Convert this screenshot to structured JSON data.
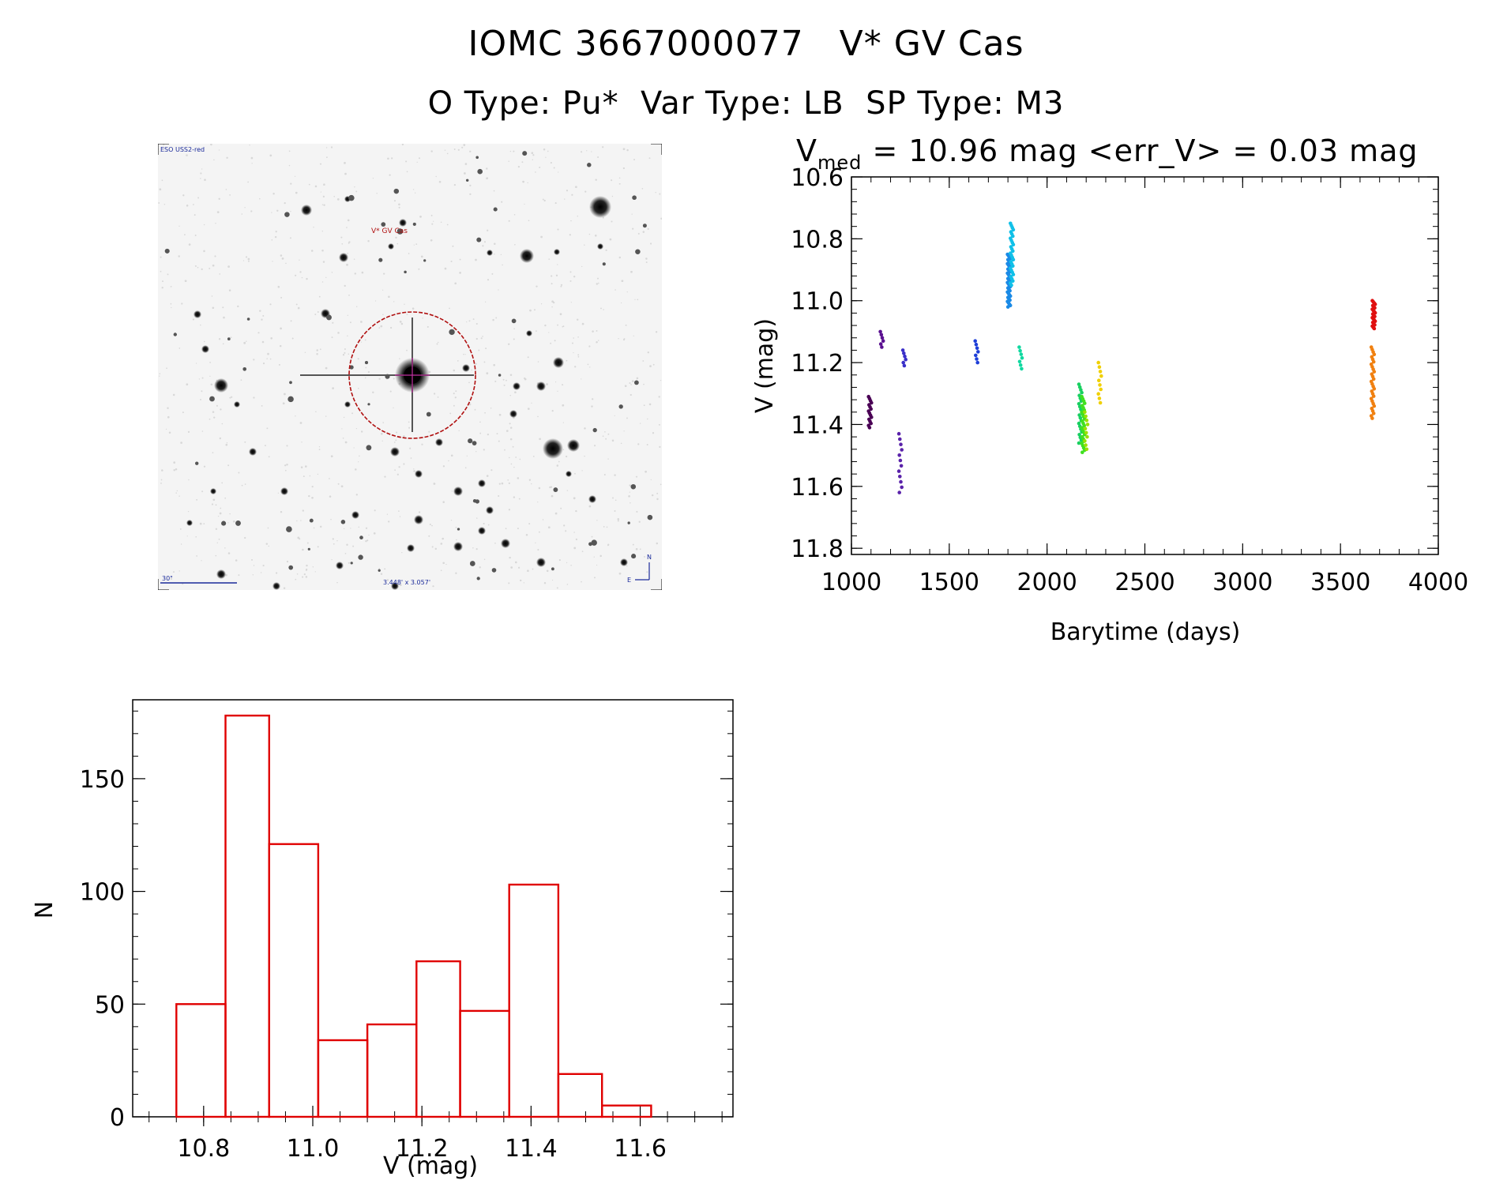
{
  "header": {
    "title": "IOMC 3667000077   V* GV Cas",
    "subtitle": "O Type: Pu*  Var Type: LB  SP Type: M3"
  },
  "finder_chart": {
    "survey_label": "ESO USS2-red",
    "target_label": "V* GV Cas",
    "scale_label": "30\"",
    "fov_label": "3.448' x 3.057'",
    "north_label": "N",
    "east_label": "E"
  },
  "chart_data": [
    {
      "type": "scatter",
      "title_prefix": "V",
      "title_sub": "med",
      "title_suffix": " = 10.96 mag <err_V> = 0.03 mag",
      "xlabel": "Barytime (days)",
      "ylabel": "V (mag)",
      "xlim": [
        1000,
        4000
      ],
      "ylim": [
        11.82,
        10.6
      ],
      "y_inverted": true,
      "xticks": [
        1000,
        1500,
        2000,
        2500,
        3000,
        3500,
        4000
      ],
      "yticks": [
        "10.6",
        "10.8",
        "11.0",
        "11.2",
        "11.4",
        "11.6",
        "11.8"
      ],
      "groups": [
        {
          "x": 1095,
          "ymin": 11.31,
          "ymax": 11.41,
          "n": 16,
          "color": "#4a0055"
        },
        {
          "x": 1155,
          "ymin": 11.1,
          "ymax": 11.15,
          "n": 6,
          "color": "#5a1090"
        },
        {
          "x": 1250,
          "ymin": 11.43,
          "ymax": 11.62,
          "n": 12,
          "color": "#5a22aa"
        },
        {
          "x": 1270,
          "ymin": 11.16,
          "ymax": 11.21,
          "n": 6,
          "color": "#3a2fc8"
        },
        {
          "x": 1640,
          "ymin": 11.13,
          "ymax": 11.2,
          "n": 7,
          "color": "#1e3fd8"
        },
        {
          "x": 1805,
          "ymin": 10.85,
          "ymax": 11.02,
          "n": 40,
          "color": "#1a8ae6"
        },
        {
          "x": 1820,
          "ymin": 10.75,
          "ymax": 10.95,
          "n": 30,
          "color": "#10c0e8"
        },
        {
          "x": 1865,
          "ymin": 11.15,
          "ymax": 11.22,
          "n": 7,
          "color": "#10d8a0"
        },
        {
          "x": 2170,
          "ymin": 11.27,
          "ymax": 11.46,
          "n": 22,
          "color": "#18d060"
        },
        {
          "x": 2185,
          "ymin": 11.31,
          "ymax": 11.49,
          "n": 26,
          "color": "#40e020"
        },
        {
          "x": 2200,
          "ymin": 11.36,
          "ymax": 11.48,
          "n": 10,
          "color": "#9ae000"
        },
        {
          "x": 2270,
          "ymin": 11.2,
          "ymax": 11.33,
          "n": 10,
          "color": "#f0d000"
        },
        {
          "x": 3665,
          "ymin": 11.15,
          "ymax": 11.38,
          "n": 30,
          "color": "#f08010"
        },
        {
          "x": 3670,
          "ymin": 11.0,
          "ymax": 11.09,
          "n": 24,
          "color": "#e01010"
        }
      ]
    },
    {
      "type": "bar",
      "xlabel": "V (mag)",
      "ylabel": "N",
      "xlim": [
        10.67,
        11.77
      ],
      "ylim": [
        0,
        185
      ],
      "xticks": [
        "10.8",
        "11.0",
        "11.2",
        "11.4",
        "11.6"
      ],
      "yticks": [
        "0",
        "50",
        "100",
        "150"
      ],
      "bin_edges": [
        10.75,
        10.84,
        10.92,
        11.01,
        11.1,
        11.19,
        11.27,
        11.36,
        11.45,
        11.53,
        11.62
      ],
      "values": [
        50,
        178,
        121,
        34,
        41,
        69,
        47,
        103,
        19,
        5
      ],
      "color": "#e00000"
    }
  ]
}
